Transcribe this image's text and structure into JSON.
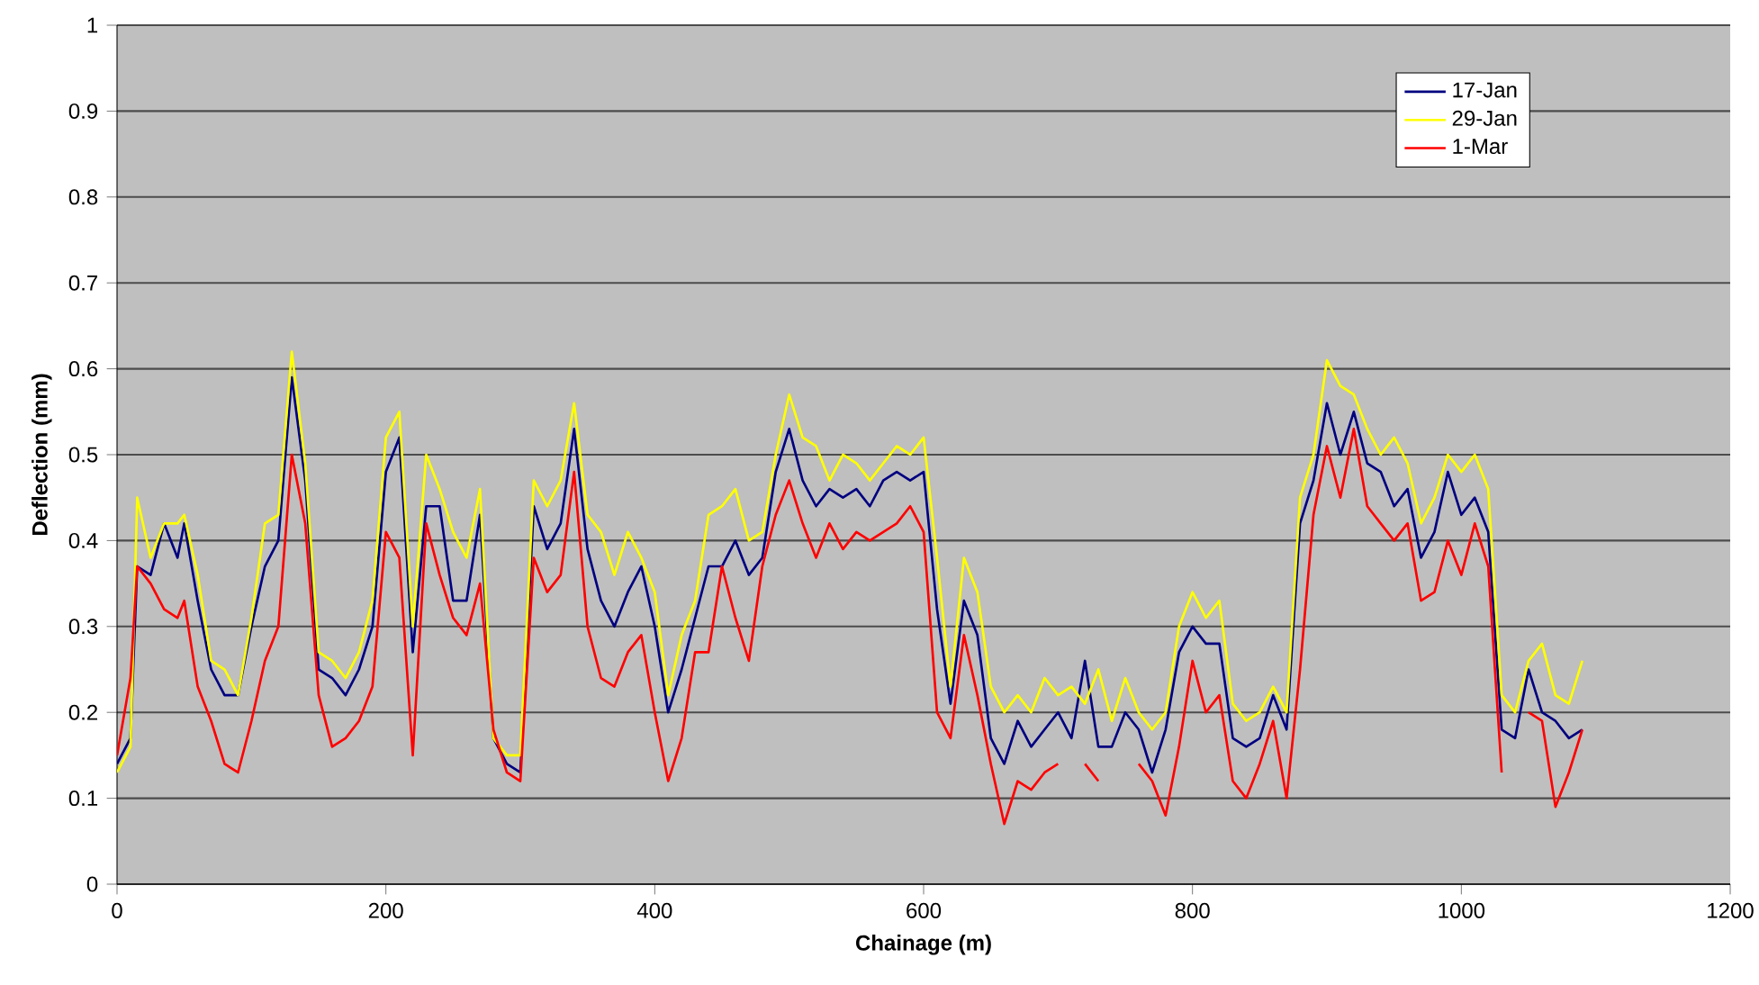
{
  "chart_data": {
    "type": "line",
    "xlabel": "Chainage (m)",
    "ylabel": "Deflection (mm)",
    "x": [
      0,
      10,
      15,
      25,
      35,
      45,
      50,
      60,
      70,
      80,
      90,
      100,
      110,
      120,
      130,
      140,
      150,
      160,
      170,
      180,
      190,
      200,
      210,
      220,
      230,
      240,
      250,
      260,
      270,
      280,
      290,
      300,
      310,
      320,
      330,
      340,
      350,
      360,
      370,
      380,
      390,
      400,
      410,
      420,
      430,
      440,
      450,
      460,
      470,
      480,
      490,
      500,
      510,
      520,
      530,
      540,
      550,
      560,
      570,
      580,
      590,
      600,
      610,
      620,
      630,
      640,
      650,
      660,
      670,
      680,
      690,
      700,
      710,
      720,
      730,
      740,
      750,
      760,
      770,
      780,
      790,
      800,
      810,
      820,
      830,
      840,
      850,
      860,
      870,
      880,
      890,
      900,
      910,
      920,
      930,
      940,
      950,
      960,
      970,
      980,
      990,
      1000,
      1010,
      1020,
      1030,
      1040,
      1050,
      1060,
      1070,
      1080,
      1090
    ],
    "series": [
      {
        "name": "17-Jan",
        "color": "#000080",
        "values": [
          0.14,
          0.17,
          0.37,
          0.36,
          0.42,
          0.38,
          0.42,
          0.33,
          0.25,
          0.22,
          0.22,
          0.3,
          0.37,
          0.4,
          0.59,
          0.47,
          0.25,
          0.24,
          0.22,
          0.25,
          0.3,
          0.48,
          0.52,
          0.27,
          0.44,
          0.44,
          0.33,
          0.33,
          0.43,
          0.17,
          0.14,
          0.13,
          0.44,
          0.39,
          0.42,
          0.53,
          0.39,
          0.33,
          0.3,
          0.34,
          0.37,
          0.3,
          0.2,
          0.25,
          0.31,
          0.37,
          0.37,
          0.4,
          0.36,
          0.38,
          0.48,
          0.53,
          0.47,
          0.44,
          0.46,
          0.45,
          0.46,
          0.44,
          0.47,
          0.48,
          0.47,
          0.48,
          0.32,
          0.21,
          0.33,
          0.29,
          0.17,
          0.14,
          0.19,
          0.16,
          0.18,
          0.2,
          0.17,
          0.26,
          0.16,
          0.16,
          0.2,
          0.18,
          0.13,
          0.18,
          0.27,
          0.3,
          0.28,
          0.28,
          0.17,
          0.16,
          0.17,
          0.22,
          0.18,
          0.42,
          0.47,
          0.56,
          0.5,
          0.55,
          0.49,
          0.48,
          0.44,
          0.46,
          0.38,
          0.41,
          0.48,
          0.43,
          0.45,
          0.41,
          0.18,
          0.17,
          0.25,
          0.2,
          0.19,
          0.17,
          0.18
        ]
      },
      {
        "name": "29-Jan",
        "color": "#ffff00",
        "values": [
          0.13,
          0.16,
          0.45,
          0.38,
          0.42,
          0.42,
          0.43,
          0.36,
          0.26,
          0.25,
          0.22,
          0.31,
          0.42,
          0.43,
          0.62,
          0.49,
          0.27,
          0.26,
          0.24,
          0.27,
          0.33,
          0.52,
          0.55,
          0.3,
          0.5,
          0.46,
          0.41,
          0.38,
          0.46,
          0.17,
          0.15,
          0.15,
          0.47,
          0.44,
          0.47,
          0.56,
          0.43,
          0.41,
          0.36,
          0.41,
          0.38,
          0.34,
          0.22,
          0.29,
          0.33,
          0.43,
          0.44,
          0.46,
          0.4,
          0.41,
          0.5,
          0.57,
          0.52,
          0.51,
          0.47,
          0.5,
          0.49,
          0.47,
          0.49,
          0.51,
          0.5,
          0.52,
          0.38,
          0.23,
          0.38,
          0.34,
          0.23,
          0.2,
          0.22,
          0.2,
          0.24,
          0.22,
          0.23,
          0.21,
          0.25,
          0.19,
          0.24,
          0.2,
          0.18,
          0.2,
          0.3,
          0.34,
          0.31,
          0.33,
          0.21,
          0.19,
          0.2,
          0.23,
          0.2,
          0.45,
          0.5,
          0.61,
          0.58,
          0.57,
          0.53,
          0.5,
          0.52,
          0.49,
          0.42,
          0.45,
          0.5,
          0.48,
          0.5,
          0.46,
          0.22,
          0.2,
          0.26,
          0.28,
          0.22,
          0.21,
          0.26
        ]
      },
      {
        "name": "1-Mar",
        "color": "#ff0000",
        "values": [
          0.15,
          0.24,
          0.37,
          0.35,
          0.32,
          0.31,
          0.33,
          0.23,
          0.19,
          0.14,
          0.13,
          0.19,
          0.26,
          0.3,
          0.5,
          0.42,
          0.22,
          0.16,
          0.17,
          0.19,
          0.23,
          0.41,
          0.38,
          0.15,
          0.42,
          0.36,
          0.31,
          0.29,
          0.35,
          0.18,
          0.13,
          0.12,
          0.38,
          0.34,
          0.36,
          0.48,
          0.3,
          0.24,
          0.23,
          0.27,
          0.29,
          0.2,
          0.12,
          0.17,
          0.27,
          0.27,
          0.37,
          0.31,
          0.26,
          0.37,
          0.43,
          0.47,
          0.42,
          0.38,
          0.42,
          0.39,
          0.41,
          0.4,
          0.41,
          0.42,
          0.44,
          0.41,
          0.2,
          0.17,
          0.29,
          0.22,
          0.14,
          0.07,
          0.12,
          0.11,
          0.13,
          0.14,
          null,
          0.14,
          0.12,
          null,
          null,
          0.14,
          0.12,
          0.08,
          0.16,
          0.26,
          0.2,
          0.22,
          0.12,
          0.1,
          0.14,
          0.19,
          0.1,
          0.25,
          0.43,
          0.51,
          0.45,
          0.53,
          0.44,
          0.42,
          0.4,
          0.42,
          0.33,
          0.34,
          0.4,
          0.36,
          0.42,
          0.37,
          0.13,
          null,
          0.2,
          0.19,
          0.09,
          0.13,
          0.18
        ]
      }
    ],
    "xlim": [
      0,
      1200
    ],
    "xticks": [
      0,
      200,
      400,
      600,
      800,
      1000,
      1200
    ],
    "ylim": [
      0,
      1
    ],
    "yticks": [
      0,
      0.1,
      0.2,
      0.3,
      0.4,
      0.5,
      0.6,
      0.7,
      0.8,
      0.9,
      1
    ],
    "grid": "y",
    "legend": "top right",
    "marker": "none",
    "line_style": "solid"
  }
}
